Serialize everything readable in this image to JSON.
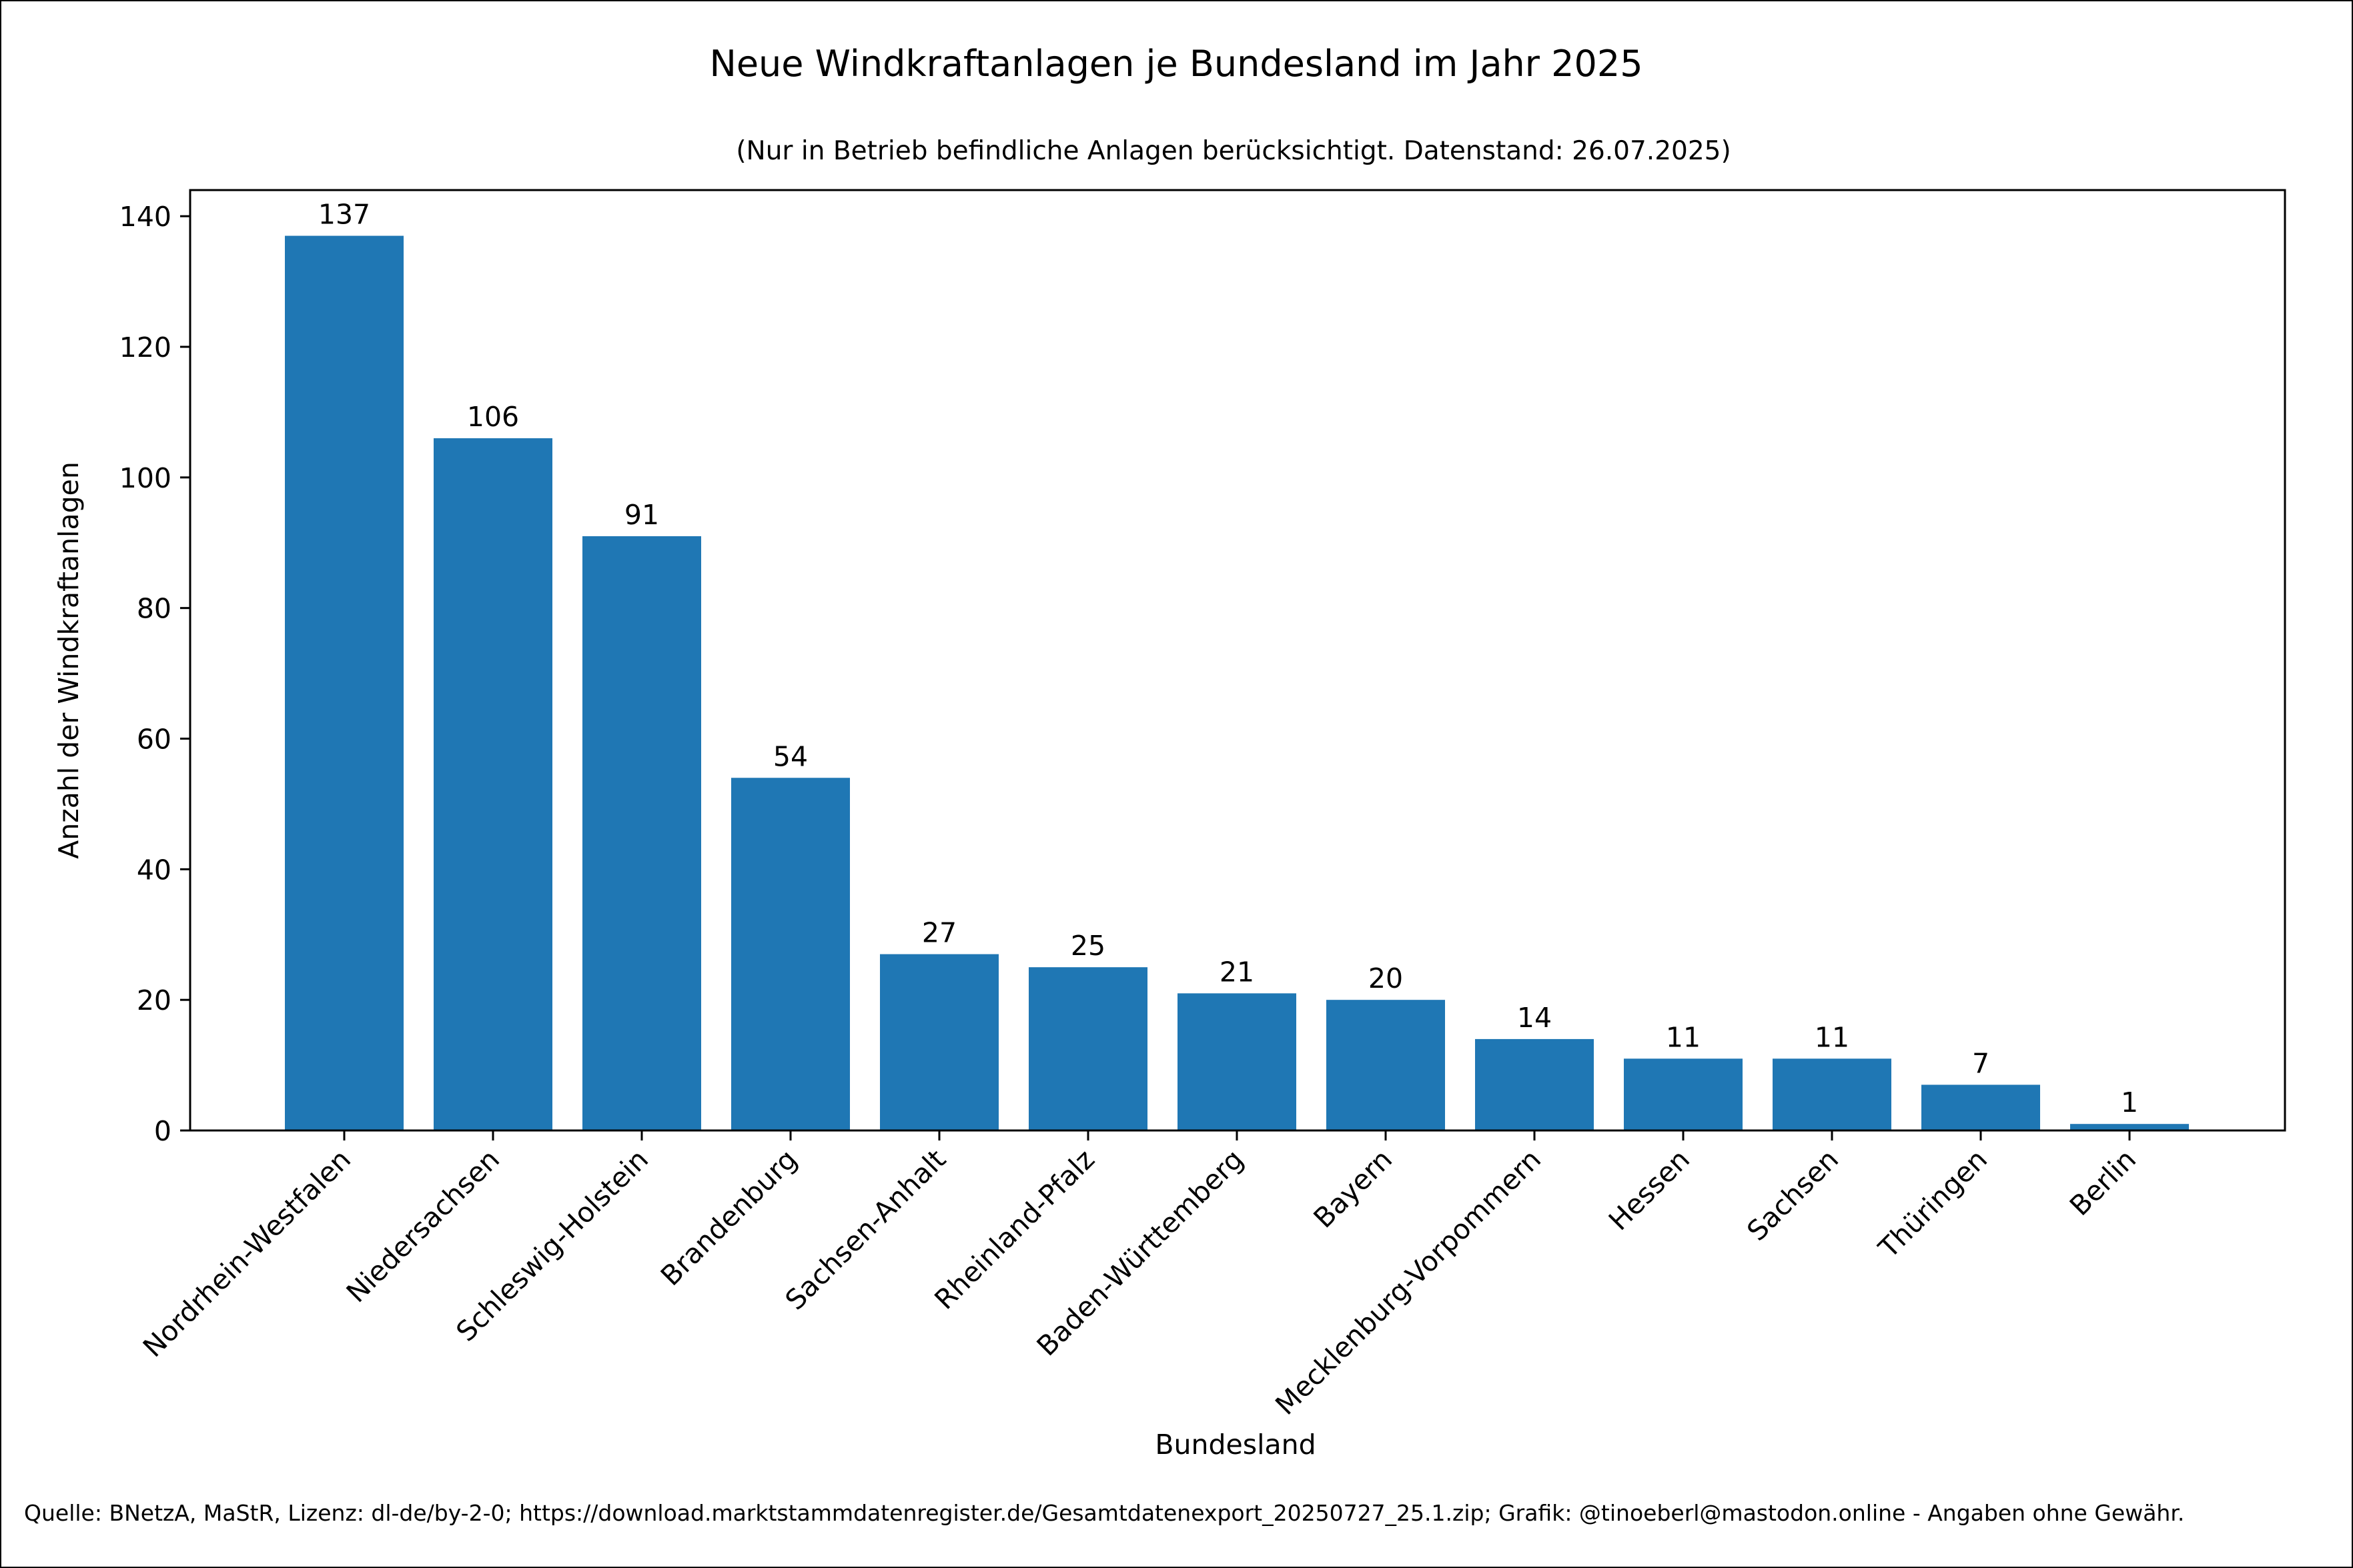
{
  "chart_data": {
    "type": "bar",
    "title": "Neue Windkraftanlagen je Bundesland im Jahr 2025",
    "subtitle": "(Nur in Betrieb befindliche Anlagen berücksichtigt. Datenstand: 26.07.2025)",
    "xlabel": "Bundesland",
    "ylabel": "Anzahl der Windkraftanlagen",
    "ylim": [
      0,
      144
    ],
    "yticks": [
      "0",
      "20",
      "40",
      "60",
      "80",
      "100",
      "120",
      "140"
    ],
    "categories": [
      "Nordrhein-Westfalen",
      "Niedersachsen",
      "Schleswig-Holstein",
      "Brandenburg",
      "Sachsen-Anhalt",
      "Rheinland-Pfalz",
      "Baden-Württemberg",
      "Bayern",
      "Mecklenburg-Vorpommern",
      "Hessen",
      "Sachsen",
      "Thüringen",
      "Berlin"
    ],
    "values": [
      137,
      106,
      91,
      54,
      27,
      25,
      21,
      20,
      14,
      11,
      11,
      7,
      1
    ],
    "value_labels": [
      "137",
      "106",
      "91",
      "54",
      "27",
      "25",
      "21",
      "20",
      "14",
      "11",
      "11",
      "7",
      "1"
    ],
    "bar_color": "#1f77b4",
    "grid": false,
    "legend": "none"
  },
  "source": "Quelle: BNetzA, MaStR, Lizenz: dl-de/by-2-0; https://download.marktstammdatenregister.de/Gesamtdatenexport_20250727_25.1.zip; Grafik: @tinoeberl@mastodon.online - Angaben ohne Gewähr."
}
